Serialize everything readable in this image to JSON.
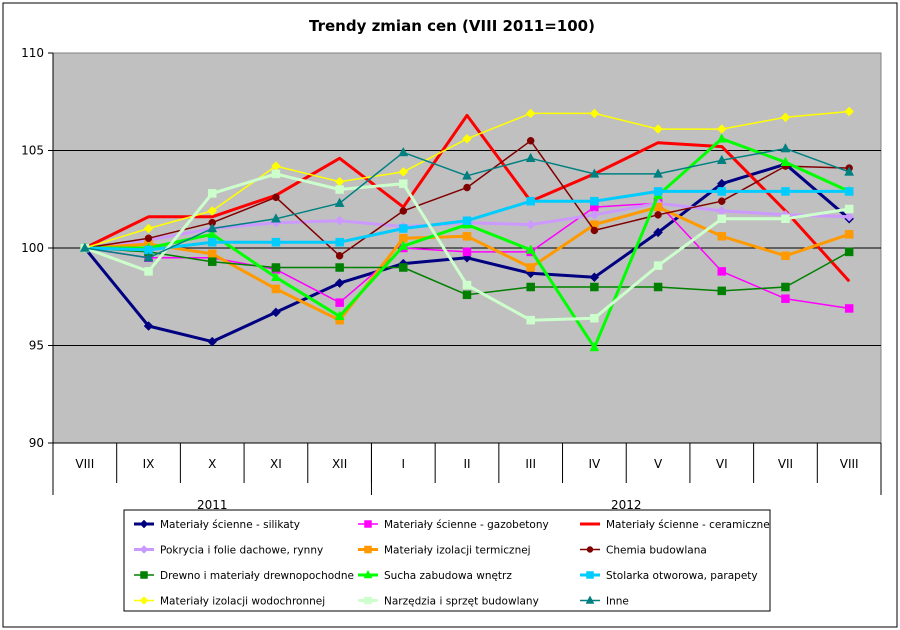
{
  "chart_data": {
    "type": "line",
    "title": "Trendy zmian cen (VIII 2011=100)",
    "xlabel": "",
    "ylabel": "",
    "categories": [
      "VIII",
      "IX",
      "X",
      "XI",
      "XII",
      "I",
      "II",
      "III",
      "IV",
      "V",
      "VI",
      "VII",
      "VIII"
    ],
    "year_groups": [
      {
        "label": "2011",
        "span": 5
      },
      {
        "label": "2012",
        "span": 8
      }
    ],
    "ylim": [
      90,
      110
    ],
    "yticks": [
      90,
      95,
      100,
      105,
      110
    ],
    "grid": "horizontal major",
    "legend_position": "bottom",
    "series": [
      {
        "name": "Materiały ścienne - silikaty",
        "color": "#000080",
        "marker": "diamond",
        "width": 3,
        "values": [
          100.0,
          96.0,
          95.2,
          96.7,
          98.2,
          99.2,
          99.5,
          98.7,
          98.5,
          100.8,
          103.3,
          104.3,
          101.5
        ]
      },
      {
        "name": "Materiały ścienne - gazobetony",
        "color": "#FF00FF",
        "marker": "square",
        "width": 1.5,
        "values": [
          100.0,
          99.5,
          99.5,
          98.9,
          97.2,
          100.0,
          99.8,
          99.8,
          102.1,
          102.3,
          98.8,
          97.4,
          96.9
        ]
      },
      {
        "name": "Materiały ścienne - ceramiczne",
        "color": "#FF0000",
        "marker": "none",
        "width": 3,
        "values": [
          100.0,
          101.6,
          101.6,
          102.7,
          104.6,
          102.1,
          106.8,
          102.4,
          103.8,
          105.4,
          105.2,
          101.9,
          98.3
        ]
      },
      {
        "name": "Pokrycia i folie dachowe, rynny",
        "color": "#CC99FF",
        "marker": "diamond",
        "width": 3,
        "values": [
          100.0,
          100.4,
          101.0,
          101.3,
          101.4,
          101.1,
          101.3,
          101.2,
          101.7,
          102.3,
          101.9,
          101.7,
          101.6
        ]
      },
      {
        "name": "Materiały izolacji termicznej",
        "color": "#FF9900",
        "marker": "square",
        "width": 3,
        "values": [
          100.0,
          100.2,
          99.7,
          97.9,
          96.3,
          100.5,
          100.6,
          99.0,
          101.2,
          102.1,
          100.6,
          99.6,
          100.7
        ]
      },
      {
        "name": "Chemia budowlana",
        "color": "#800000",
        "marker": "circle",
        "width": 1.5,
        "values": [
          100.0,
          100.5,
          101.3,
          102.6,
          99.6,
          101.9,
          103.1,
          105.5,
          100.9,
          101.7,
          102.4,
          104.2,
          104.1
        ]
      },
      {
        "name": "Drewno i materiały drewnopochodne",
        "color": "#008000",
        "marker": "square",
        "width": 1.5,
        "values": [
          100.0,
          99.8,
          99.3,
          99.0,
          99.0,
          99.0,
          97.6,
          98.0,
          98.0,
          98.0,
          97.8,
          98.0,
          99.8
        ]
      },
      {
        "name": "Sucha zabudowa wnętrz",
        "color": "#00FF00",
        "marker": "triangle",
        "width": 3,
        "values": [
          100.0,
          100.0,
          100.7,
          98.5,
          96.5,
          100.1,
          101.2,
          99.9,
          94.9,
          102.7,
          105.6,
          104.4,
          102.9
        ]
      },
      {
        "name": "Stolarka otworowa, parapety",
        "color": "#00CCFF",
        "marker": "square",
        "width": 3,
        "values": [
          100.0,
          99.9,
          100.3,
          100.3,
          100.3,
          101.0,
          101.4,
          102.4,
          102.4,
          102.9,
          102.9,
          102.9,
          102.9
        ]
      },
      {
        "name": "Materiały izolacji wodochronnej",
        "color": "#FFFF00",
        "marker": "diamond",
        "width": 1.5,
        "values": [
          100.0,
          101.0,
          101.9,
          104.2,
          103.4,
          103.9,
          105.6,
          106.9,
          106.9,
          106.1,
          106.1,
          106.7,
          107.0
        ]
      },
      {
        "name": "Narzędzia i sprzęt budowlany",
        "color": "#CCFFCC",
        "marker": "square",
        "width": 3,
        "values": [
          100.0,
          98.8,
          102.8,
          103.8,
          103.0,
          103.3,
          98.1,
          96.3,
          96.4,
          99.1,
          101.5,
          101.5,
          102.0
        ]
      },
      {
        "name": "Inne",
        "color": "#008080",
        "marker": "triangle",
        "width": 1.5,
        "values": [
          100.0,
          99.5,
          101.0,
          101.5,
          102.3,
          104.9,
          103.7,
          104.6,
          103.8,
          103.8,
          104.5,
          105.1,
          103.9
        ]
      }
    ]
  }
}
